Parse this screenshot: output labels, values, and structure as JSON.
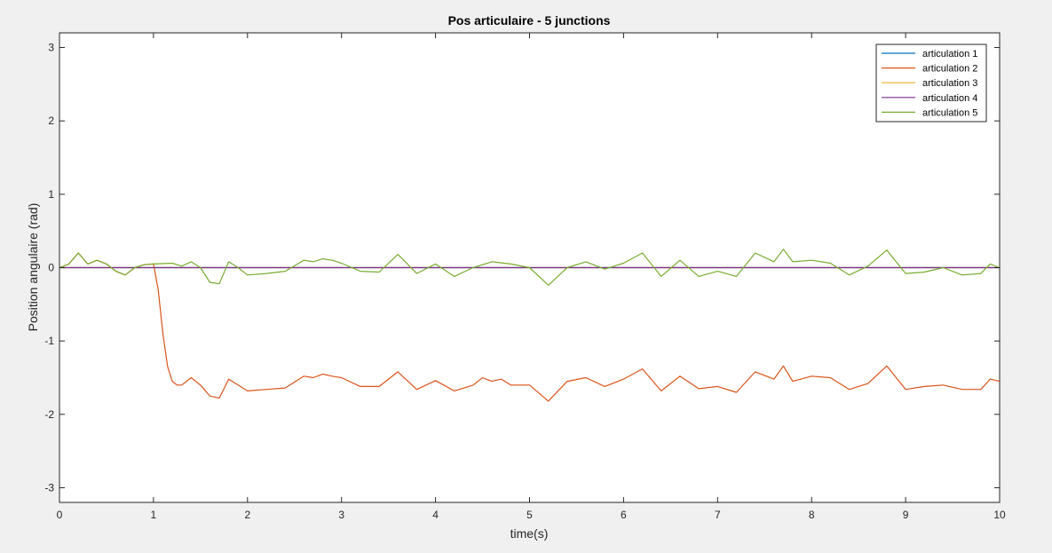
{
  "chart_data": {
    "type": "line",
    "title": "Pos articulaire - 5 junctions",
    "xlabel": "time(s)",
    "ylabel": "Position angulaire (rad)",
    "xlim": [
      0,
      10
    ],
    "ylim": [
      -3.2,
      3.2
    ],
    "xticks": [
      0,
      1,
      2,
      3,
      4,
      5,
      6,
      7,
      8,
      9,
      10
    ],
    "yticks": [
      -3,
      -2,
      -1,
      0,
      1,
      2,
      3
    ],
    "grid": false,
    "legend_position": "top-right",
    "series": [
      {
        "name": "articulation 1",
        "color": "#0072bd",
        "x": [
          0,
          10
        ],
        "y": [
          0,
          0
        ]
      },
      {
        "name": "articulation 2",
        "color": "#d95319",
        "x": [
          0,
          0.1,
          0.2,
          0.3,
          0.4,
          0.5,
          0.6,
          0.7,
          0.8,
          0.9,
          1.0,
          1.05,
          1.1,
          1.15,
          1.2,
          1.25,
          1.3,
          1.4,
          1.5,
          1.6,
          1.7,
          1.8,
          1.9,
          2.0,
          2.2,
          2.4,
          2.6,
          2.7,
          2.8,
          2.9,
          3.0,
          3.2,
          3.4,
          3.6,
          3.8,
          4.0,
          4.2,
          4.4,
          4.5,
          4.6,
          4.7,
          4.8,
          5.0,
          5.2,
          5.4,
          5.6,
          5.8,
          6.0,
          6.2,
          6.4,
          6.6,
          6.8,
          7.0,
          7.2,
          7.4,
          7.6,
          7.7,
          7.8,
          8.0,
          8.2,
          8.4,
          8.6,
          8.8,
          9.0,
          9.2,
          9.4,
          9.6,
          9.8,
          9.9,
          10.0
        ],
        "y": [
          0.0,
          0.05,
          0.2,
          0.05,
          0.1,
          0.05,
          -0.05,
          -0.1,
          0.0,
          0.04,
          0.05,
          -0.3,
          -0.9,
          -1.35,
          -1.55,
          -1.6,
          -1.6,
          -1.5,
          -1.6,
          -1.75,
          -1.78,
          -1.52,
          -1.6,
          -1.68,
          -1.66,
          -1.64,
          -1.48,
          -1.5,
          -1.45,
          -1.48,
          -1.5,
          -1.62,
          -1.62,
          -1.42,
          -1.66,
          -1.54,
          -1.68,
          -1.6,
          -1.5,
          -1.55,
          -1.52,
          -1.6,
          -1.6,
          -1.82,
          -1.55,
          -1.5,
          -1.62,
          -1.52,
          -1.38,
          -1.68,
          -1.48,
          -1.65,
          -1.62,
          -1.7,
          -1.42,
          -1.52,
          -1.34,
          -1.55,
          -1.48,
          -1.5,
          -1.66,
          -1.58,
          -1.34,
          -1.66,
          -1.62,
          -1.6,
          -1.66,
          -1.66,
          -1.52,
          -1.55
        ]
      },
      {
        "name": "articulation 3",
        "color": "#edb120",
        "x": [
          0,
          10
        ],
        "y": [
          0,
          0
        ]
      },
      {
        "name": "articulation 4",
        "color": "#7e2f8e",
        "x": [
          0,
          10
        ],
        "y": [
          0,
          0
        ]
      },
      {
        "name": "articulation 5",
        "color": "#77ac30",
        "x": [
          0,
          0.1,
          0.2,
          0.3,
          0.4,
          0.5,
          0.6,
          0.7,
          0.8,
          0.9,
          1.0,
          1.2,
          1.3,
          1.4,
          1.5,
          1.6,
          1.7,
          1.8,
          1.9,
          2.0,
          2.2,
          2.4,
          2.6,
          2.7,
          2.8,
          2.9,
          3.0,
          3.2,
          3.4,
          3.6,
          3.8,
          4.0,
          4.2,
          4.4,
          4.6,
          4.8,
          5.0,
          5.2,
          5.4,
          5.6,
          5.8,
          6.0,
          6.2,
          6.4,
          6.6,
          6.8,
          7.0,
          7.2,
          7.4,
          7.6,
          7.7,
          7.8,
          8.0,
          8.2,
          8.4,
          8.6,
          8.8,
          9.0,
          9.2,
          9.4,
          9.6,
          9.8,
          9.9,
          10.0
        ],
        "y": [
          0.0,
          0.05,
          0.2,
          0.05,
          0.1,
          0.05,
          -0.05,
          -0.1,
          0.0,
          0.04,
          0.05,
          0.06,
          0.02,
          0.08,
          0.0,
          -0.2,
          -0.22,
          0.08,
          0.0,
          -0.1,
          -0.08,
          -0.05,
          0.1,
          0.08,
          0.12,
          0.1,
          0.06,
          -0.05,
          -0.06,
          0.18,
          -0.08,
          0.05,
          -0.12,
          0.0,
          0.08,
          0.05,
          0.0,
          -0.24,
          0.0,
          0.08,
          -0.02,
          0.06,
          0.2,
          -0.12,
          0.1,
          -0.12,
          -0.05,
          -0.12,
          0.2,
          0.08,
          0.25,
          0.08,
          0.1,
          0.06,
          -0.1,
          0.02,
          0.24,
          -0.08,
          -0.06,
          0.0,
          -0.1,
          -0.08,
          0.05,
          0.0
        ]
      }
    ]
  }
}
